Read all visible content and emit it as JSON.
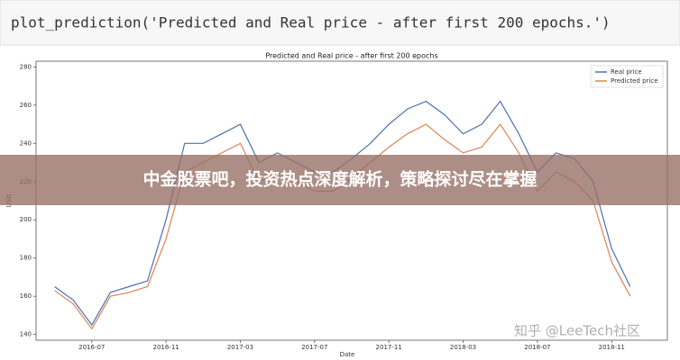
{
  "code": "plot_prediction('Predicted and Real price - after first 200 epochs.')",
  "banner": "中金股票吧，投资热点深度解析，策略探讨尽在掌握",
  "watermark": "知乎 @LeeTech社区",
  "chart_data": {
    "type": "line",
    "title": "Predicted and Real price - after first 200 epochs",
    "xlabel": "Date",
    "ylabel": "USD",
    "x": [
      "2016-05",
      "2016-06",
      "2016-07",
      "2016-08",
      "2016-09",
      "2016-10",
      "2016-11",
      "2016-12",
      "2017-01",
      "2017-02",
      "2017-03",
      "2017-04",
      "2017-05",
      "2017-06",
      "2017-07",
      "2017-08",
      "2017-09",
      "2017-10",
      "2017-11",
      "2017-12",
      "2018-01",
      "2018-02",
      "2018-03",
      "2018-04",
      "2018-05",
      "2018-06",
      "2018-07",
      "2018-08",
      "2018-09",
      "2018-10",
      "2018-11",
      "2018-12"
    ],
    "series": [
      {
        "name": "Real price",
        "color": "#4c72b0",
        "values": [
          165,
          158,
          145,
          162,
          165,
          168,
          200,
          240,
          240,
          245,
          250,
          230,
          235,
          230,
          225,
          225,
          232,
          240,
          250,
          258,
          262,
          255,
          245,
          250,
          262,
          245,
          225,
          235,
          232,
          220,
          185,
          165
        ]
      },
      {
        "name": "Predicted price",
        "color": "#dd8452",
        "values": [
          163,
          156,
          143,
          160,
          162,
          165,
          190,
          225,
          230,
          235,
          240,
          220,
          225,
          220,
          215,
          215,
          222,
          230,
          238,
          245,
          250,
          242,
          235,
          238,
          250,
          235,
          215,
          225,
          220,
          210,
          178,
          160
        ]
      }
    ],
    "xlim": [
      "2016-04",
      "2019-02"
    ],
    "xticks": [
      "2016-07",
      "2016-11",
      "2017-03",
      "2017-07",
      "2017-11",
      "2018-03",
      "2018-07",
      "2018-11"
    ],
    "ylim": [
      137,
      283
    ],
    "yticks": [
      140,
      160,
      180,
      200,
      220,
      240,
      260,
      280
    ],
    "legend": "upper right"
  }
}
